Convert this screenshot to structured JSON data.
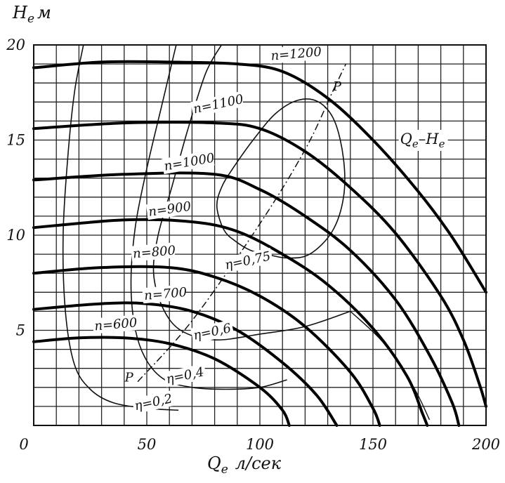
{
  "chart_data": {
    "type": "line",
    "title": "",
    "xlabel": "Q",
    "xlabel_sub": "e",
    "xlabel_unit": "л/сек",
    "ylabel": "H",
    "ylabel_sub": "e",
    "ylabel_unit": "м",
    "xlim": [
      0,
      200
    ],
    "ylim": [
      0,
      20
    ],
    "x_ticks": [
      {
        "value": 0,
        "label": "0"
      },
      {
        "value": 50,
        "label": "50"
      },
      {
        "value": 100,
        "label": "100"
      },
      {
        "value": 150,
        "label": "150"
      },
      {
        "value": 200,
        "label": "200"
      }
    ],
    "y_ticks": [
      {
        "value": 5,
        "label": "5"
      },
      {
        "value": 10,
        "label": "10"
      },
      {
        "value": 15,
        "label": "15"
      },
      {
        "value": 20,
        "label": "20"
      }
    ],
    "grid": true,
    "grid_step_x": 10,
    "grid_step_y": 1,
    "characteristic_curves": [
      {
        "name": "n=600",
        "points": [
          [
            0,
            4.4
          ],
          [
            20,
            4.6
          ],
          [
            40,
            4.6
          ],
          [
            60,
            4.3
          ],
          [
            80,
            3.5
          ],
          [
            100,
            2.0
          ],
          [
            110,
            0.8
          ],
          [
            113,
            0
          ]
        ]
      },
      {
        "name": "n=700",
        "points": [
          [
            0,
            6.1
          ],
          [
            30,
            6.4
          ],
          [
            50,
            6.4
          ],
          [
            70,
            6.0
          ],
          [
            90,
            5.0
          ],
          [
            110,
            3.3
          ],
          [
            125,
            1.6
          ],
          [
            134,
            0
          ]
        ]
      },
      {
        "name": "n=800",
        "points": [
          [
            0,
            8.0
          ],
          [
            30,
            8.3
          ],
          [
            60,
            8.3
          ],
          [
            80,
            7.8
          ],
          [
            100,
            6.8
          ],
          [
            120,
            5.2
          ],
          [
            140,
            2.8
          ],
          [
            150,
            0.9
          ],
          [
            153,
            0
          ]
        ]
      },
      {
        "name": "n=900",
        "points": [
          [
            0,
            10.4
          ],
          [
            40,
            10.8
          ],
          [
            70,
            10.7
          ],
          [
            90,
            10.2
          ],
          [
            110,
            9.0
          ],
          [
            130,
            7.4
          ],
          [
            150,
            5.1
          ],
          [
            165,
            2.6
          ],
          [
            172,
            0.6
          ],
          [
            174,
            0
          ]
        ]
      },
      {
        "name": "n=1000",
        "points": [
          [
            0,
            12.9
          ],
          [
            40,
            13.2
          ],
          [
            80,
            13.2
          ],
          [
            100,
            12.4
          ],
          [
            120,
            11.0
          ],
          [
            140,
            9.2
          ],
          [
            160,
            6.6
          ],
          [
            175,
            3.7
          ],
          [
            185,
            1.2
          ],
          [
            188,
            0
          ]
        ]
      },
      {
        "name": "n=1100",
        "points": [
          [
            0,
            15.6
          ],
          [
            40,
            15.9
          ],
          [
            80,
            15.9
          ],
          [
            100,
            15.6
          ],
          [
            120,
            14.4
          ],
          [
            140,
            12.5
          ],
          [
            160,
            10.1
          ],
          [
            180,
            6.8
          ],
          [
            190,
            4.5
          ],
          [
            197,
            2.2
          ],
          [
            200,
            1.0
          ]
        ]
      },
      {
        "name": "n=1200",
        "points": [
          [
            0,
            18.8
          ],
          [
            30,
            19.1
          ],
          [
            60,
            19.1
          ],
          [
            90,
            19.0
          ],
          [
            110,
            18.6
          ],
          [
            130,
            17.2
          ],
          [
            150,
            15.0
          ],
          [
            170,
            12.3
          ],
          [
            185,
            9.9
          ],
          [
            200,
            7.0
          ]
        ]
      }
    ],
    "characteristic_labels": [
      {
        "text": "n=600",
        "x": 27,
        "y": 5.0,
        "rot": -5
      },
      {
        "text": "n=700",
        "x": 49,
        "y": 6.6,
        "rot": -5
      },
      {
        "text": "n=800",
        "x": 44,
        "y": 8.8,
        "rot": -5
      },
      {
        "text": "n=900",
        "x": 51,
        "y": 11.0,
        "rot": -8
      },
      {
        "text": "n=1000",
        "x": 58,
        "y": 13.4,
        "rot": -10
      },
      {
        "text": "n=1100",
        "x": 71,
        "y": 16.4,
        "rot": -12
      },
      {
        "text": "n=1200",
        "x": 105,
        "y": 19.2,
        "rot": -5
      }
    ],
    "curve_label_qh": {
      "text": "Q",
      "sub": "e",
      "sep": "–",
      "text2": "H",
      "sub2": "e",
      "x": 162,
      "y": 14.8
    },
    "efficiency_curves": [
      {
        "name": "η=0,2",
        "points": [
          [
            64,
            0.8
          ],
          [
            50,
            0.9
          ],
          [
            35,
            1.2
          ],
          [
            25,
            1.9
          ],
          [
            18,
            3.2
          ],
          [
            14,
            6
          ],
          [
            13,
            10
          ],
          [
            15,
            14
          ],
          [
            18,
            17.5
          ],
          [
            22,
            20
          ]
        ],
        "extra": []
      },
      {
        "name": "η=0,4",
        "points": [
          [
            112,
            2.4
          ],
          [
            100,
            2.0
          ],
          [
            85,
            1.9
          ],
          [
            70,
            2.0
          ],
          [
            58,
            2.4
          ],
          [
            50,
            3.4
          ],
          [
            45,
            5.0
          ],
          [
            43,
            7.5
          ],
          [
            45,
            10.5
          ],
          [
            50,
            13.5
          ],
          [
            57,
            17
          ],
          [
            62,
            19.5
          ],
          [
            63,
            20
          ]
        ]
      },
      {
        "name": "η=0,6",
        "points": [
          [
            140,
            6.0
          ],
          [
            120,
            5.2
          ],
          [
            100,
            4.8
          ],
          [
            80,
            4.5
          ],
          [
            65,
            5.0
          ],
          [
            57,
            6.2
          ],
          [
            53,
            8
          ],
          [
            55,
            10
          ],
          [
            61,
            12.5
          ],
          [
            68,
            15.5
          ],
          [
            76,
            18.5
          ],
          [
            83,
            20
          ]
        ]
      },
      {
        "name": "η=0,75",
        "points": [
          [
            103,
            9.0
          ],
          [
            96,
            9.2
          ],
          [
            89,
            9.7
          ],
          [
            84,
            10.3
          ],
          [
            81,
            11.5
          ],
          [
            83,
            12.5
          ],
          [
            88,
            13.5
          ],
          [
            97,
            15
          ],
          [
            107,
            16.4
          ],
          [
            117,
            17.1
          ],
          [
            126,
            17.0
          ],
          [
            133,
            16.0
          ],
          [
            137,
            14.0
          ],
          [
            137,
            12.0
          ],
          [
            132,
            10.2
          ],
          [
            122,
            9.0
          ],
          [
            112,
            8.8
          ],
          [
            103,
            9.0
          ]
        ]
      }
    ],
    "efficiency_labels": [
      {
        "text": "η=0,2",
        "x": 45,
        "y": 0.8
      },
      {
        "text": "η=0,4",
        "x": 59,
        "y": 2.2
      },
      {
        "text": "η=0,6",
        "x": 71,
        "y": 4.5
      },
      {
        "text": "η=0,75",
        "x": 85,
        "y": 8.2
      }
    ],
    "operating_line": {
      "label": "P",
      "points": [
        [
          46,
          2.3
        ],
        [
          70,
          5.5
        ],
        [
          100,
          10.6
        ],
        [
          120,
          14.5
        ],
        [
          132,
          17.5
        ],
        [
          138,
          19.0
        ]
      ],
      "label_start": {
        "x": 44,
        "y": 2.3
      },
      "label_end": {
        "x": 136,
        "y": 17.6
      }
    },
    "system_curve": {
      "points": [
        [
          175,
          0.3
        ],
        [
          168,
          2.0
        ],
        [
          155,
          4.3
        ],
        [
          140,
          6.0
        ]
      ]
    }
  }
}
